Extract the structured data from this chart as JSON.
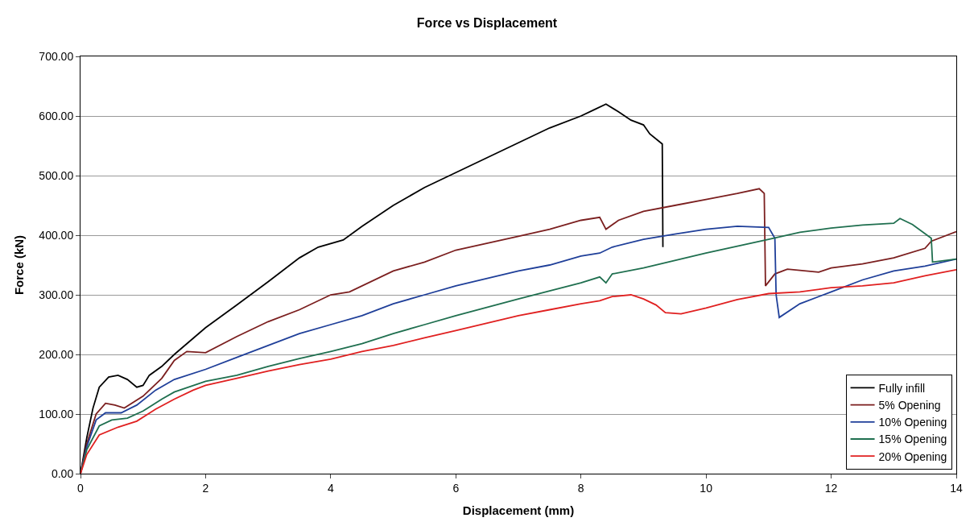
{
  "chart_data": {
    "type": "line",
    "title": "Force vs Displacement",
    "xlabel": "Displacement (mm)",
    "ylabel": "Force (kN)",
    "xlim": [
      0,
      14
    ],
    "xticks": [
      0,
      2,
      4,
      6,
      8,
      10,
      12,
      14
    ],
    "ylim": [
      0,
      700
    ],
    "yticks": [
      {
        "value": 0,
        "label": "0.00"
      },
      {
        "value": 100,
        "label": "100.00"
      },
      {
        "value": 200,
        "label": "200.00"
      },
      {
        "value": 300,
        "label": "300.00"
      },
      {
        "value": 400,
        "label": "400.00"
      },
      {
        "value": 500,
        "label": "500.00"
      },
      {
        "value": 600,
        "label": "600.00"
      },
      {
        "value": 700,
        "label": "700.00"
      }
    ],
    "grid": "y",
    "legend": "bottom right",
    "marker": "none",
    "line_style": "solid",
    "series": [
      {
        "name": "Fully infill",
        "color": "#000000",
        "x": [
          0,
          0.1,
          0.2,
          0.3,
          0.45,
          0.6,
          0.75,
          0.9,
          1.0,
          1.1,
          1.3,
          1.5,
          2,
          2.5,
          3,
          3.5,
          3.8,
          4.2,
          4.5,
          5,
          5.5,
          6,
          6.5,
          7,
          7.5,
          8,
          8.2,
          8.4,
          8.6,
          8.8,
          9.0,
          9.1,
          9.3,
          9.31
        ],
        "values": [
          0,
          60,
          110,
          145,
          162,
          165,
          158,
          145,
          148,
          165,
          180,
          200,
          245,
          283,
          322,
          362,
          380,
          392,
          415,
          450,
          480,
          505,
          530,
          555,
          580,
          600,
          610,
          620,
          607,
          593,
          585,
          570,
          553,
          380
        ]
      },
      {
        "name": "5% Opening",
        "color": "#7b1f1f",
        "x": [
          0,
          0.1,
          0.25,
          0.4,
          0.55,
          0.7,
          1.0,
          1.3,
          1.5,
          1.7,
          2,
          2.5,
          3,
          3.5,
          4,
          4.3,
          5,
          5.5,
          6,
          7,
          7.5,
          8,
          8.3,
          8.4,
          8.6,
          9,
          9.5,
          10,
          10.5,
          10.85,
          10.93,
          10.95,
          11.1,
          11.3,
          11.8,
          12,
          12.5,
          13,
          13.5,
          13.6,
          14
        ],
        "values": [
          0,
          50,
          100,
          118,
          115,
          110,
          130,
          160,
          190,
          205,
          203,
          230,
          255,
          275,
          300,
          305,
          340,
          355,
          375,
          398,
          410,
          425,
          430,
          410,
          425,
          440,
          450,
          460,
          470,
          478,
          470,
          315,
          335,
          343,
          338,
          345,
          352,
          362,
          378,
          390,
          406
        ]
      },
      {
        "name": "10% Opening",
        "color": "#1f3f99",
        "x": [
          0,
          0.1,
          0.25,
          0.4,
          0.65,
          0.9,
          1.2,
          1.5,
          2,
          2.5,
          3,
          3.5,
          4,
          4.5,
          5,
          5.5,
          6,
          7,
          7.5,
          8,
          8.3,
          8.5,
          9,
          9.5,
          10,
          10.5,
          11,
          11.1,
          11.12,
          11.17,
          11.5,
          12,
          12.5,
          13,
          13.5,
          14
        ],
        "values": [
          0,
          45,
          90,
          102,
          102,
          115,
          140,
          158,
          175,
          195,
          215,
          235,
          250,
          265,
          285,
          300,
          315,
          340,
          350,
          365,
          370,
          380,
          393,
          402,
          410,
          415,
          413,
          395,
          300,
          262,
          285,
          305,
          325,
          340,
          348,
          360
        ]
      },
      {
        "name": "15% Opening",
        "color": "#1f6f4f",
        "x": [
          0,
          0.1,
          0.3,
          0.5,
          0.75,
          1,
          1.3,
          1.5,
          2,
          2.5,
          3,
          3.5,
          4,
          4.5,
          5,
          5.5,
          6,
          7,
          8,
          8.3,
          8.4,
          8.5,
          9,
          10,
          11,
          11.5,
          12,
          12.5,
          13,
          13.1,
          13.3,
          13.6,
          13.62,
          14
        ],
        "values": [
          0,
          40,
          80,
          90,
          93,
          105,
          125,
          137,
          155,
          165,
          180,
          193,
          205,
          218,
          235,
          250,
          265,
          293,
          320,
          330,
          320,
          335,
          345,
          370,
          393,
          405,
          412,
          417,
          420,
          428,
          418,
          395,
          355,
          360
        ]
      },
      {
        "name": "20% Opening",
        "color": "#e02020",
        "x": [
          0,
          0.1,
          0.3,
          0.6,
          0.9,
          1.2,
          1.5,
          1.8,
          2,
          2.5,
          3,
          3.5,
          4,
          4.5,
          5,
          5.5,
          6,
          7,
          7.5,
          8,
          8.3,
          8.5,
          8.8,
          9.0,
          9.2,
          9.35,
          9.6,
          10,
          10.5,
          11,
          11.5,
          12,
          12.5,
          13,
          13.5,
          14
        ],
        "values": [
          0,
          32,
          65,
          78,
          88,
          108,
          125,
          140,
          148,
          160,
          172,
          183,
          192,
          205,
          215,
          228,
          240,
          265,
          275,
          285,
          290,
          297,
          300,
          293,
          283,
          270,
          268,
          278,
          292,
          302,
          305,
          312,
          315,
          320,
          332,
          342
        ]
      }
    ]
  }
}
